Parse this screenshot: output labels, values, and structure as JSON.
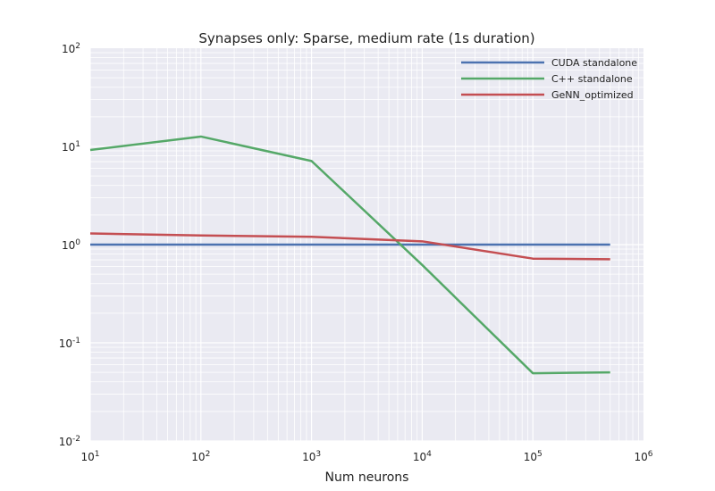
{
  "chart_data": {
    "type": "line",
    "title": "Synapses only: Sparse, medium rate (1s duration)",
    "xlabel": "Num neurons",
    "ylabel": "",
    "xscale": "log",
    "yscale": "log",
    "xlim": [
      10,
      1000000
    ],
    "ylim": [
      0.01,
      100
    ],
    "grid": true,
    "legend_position": "top-right",
    "x_ticks": [
      {
        "base": "10",
        "exp": "1",
        "value": 10
      },
      {
        "base": "10",
        "exp": "2",
        "value": 100
      },
      {
        "base": "10",
        "exp": "3",
        "value": 1000
      },
      {
        "base": "10",
        "exp": "4",
        "value": 10000
      },
      {
        "base": "10",
        "exp": "5",
        "value": 100000
      },
      {
        "base": "10",
        "exp": "6",
        "value": 1000000
      }
    ],
    "y_ticks": [
      {
        "base": "10",
        "exp": "-2",
        "value": 0.01
      },
      {
        "base": "10",
        "exp": "-1",
        "value": 0.1
      },
      {
        "base": "10",
        "exp": "0",
        "value": 1
      },
      {
        "base": "10",
        "exp": "1",
        "value": 10
      },
      {
        "base": "10",
        "exp": "2",
        "value": 100
      }
    ],
    "x": [
      10,
      100,
      1000,
      10000,
      100000,
      500000
    ],
    "series": [
      {
        "name": "CUDA standalone",
        "color": "#4c72b0",
        "values": [
          1.0,
          1.0,
          1.0,
          1.0,
          1.0,
          1.0
        ]
      },
      {
        "name": "C++ standalone",
        "color": "#55a868",
        "values": [
          9.2,
          12.6,
          7.1,
          0.62,
          0.049,
          0.05
        ]
      },
      {
        "name": "GeNN_optimized",
        "color": "#c44e52",
        "values": [
          1.3,
          1.24,
          1.2,
          1.08,
          0.72,
          0.71
        ]
      }
    ],
    "style": {
      "plot_background": "#eaeaf2",
      "grid_color": "#ffffff"
    }
  }
}
